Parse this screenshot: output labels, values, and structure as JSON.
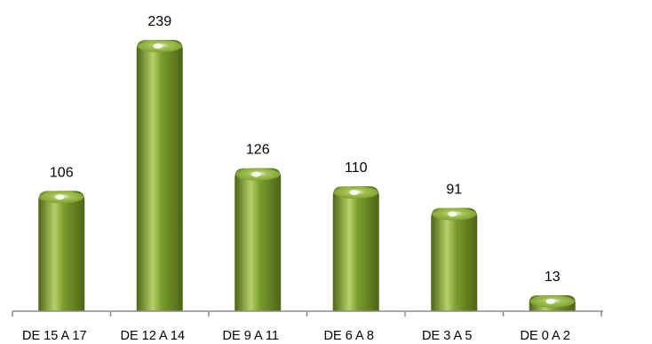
{
  "chart_data": {
    "type": "bar",
    "title": "",
    "xlabel": "",
    "ylabel": "",
    "categories": [
      "DE 15 A 17",
      "DE 12 A 14",
      "DE 9 A 11",
      "DE 6 A 8",
      "DE 3 A 5",
      "DE 0 A 2"
    ],
    "values": [
      106,
      239,
      126,
      110,
      91,
      13
    ],
    "value_labels": [
      "106",
      "239",
      "126",
      "110",
      "91",
      "13"
    ],
    "ylim": [
      0,
      239
    ],
    "grid": false,
    "legend": "none",
    "colors": {
      "bar_dark": "#4d6516",
      "bar_mid": "#7a9a2c",
      "bar_light": "#b6d16a",
      "bar_top": "#a5c455",
      "highlight": "#ffffff",
      "axis": "#8c8c8c"
    }
  }
}
